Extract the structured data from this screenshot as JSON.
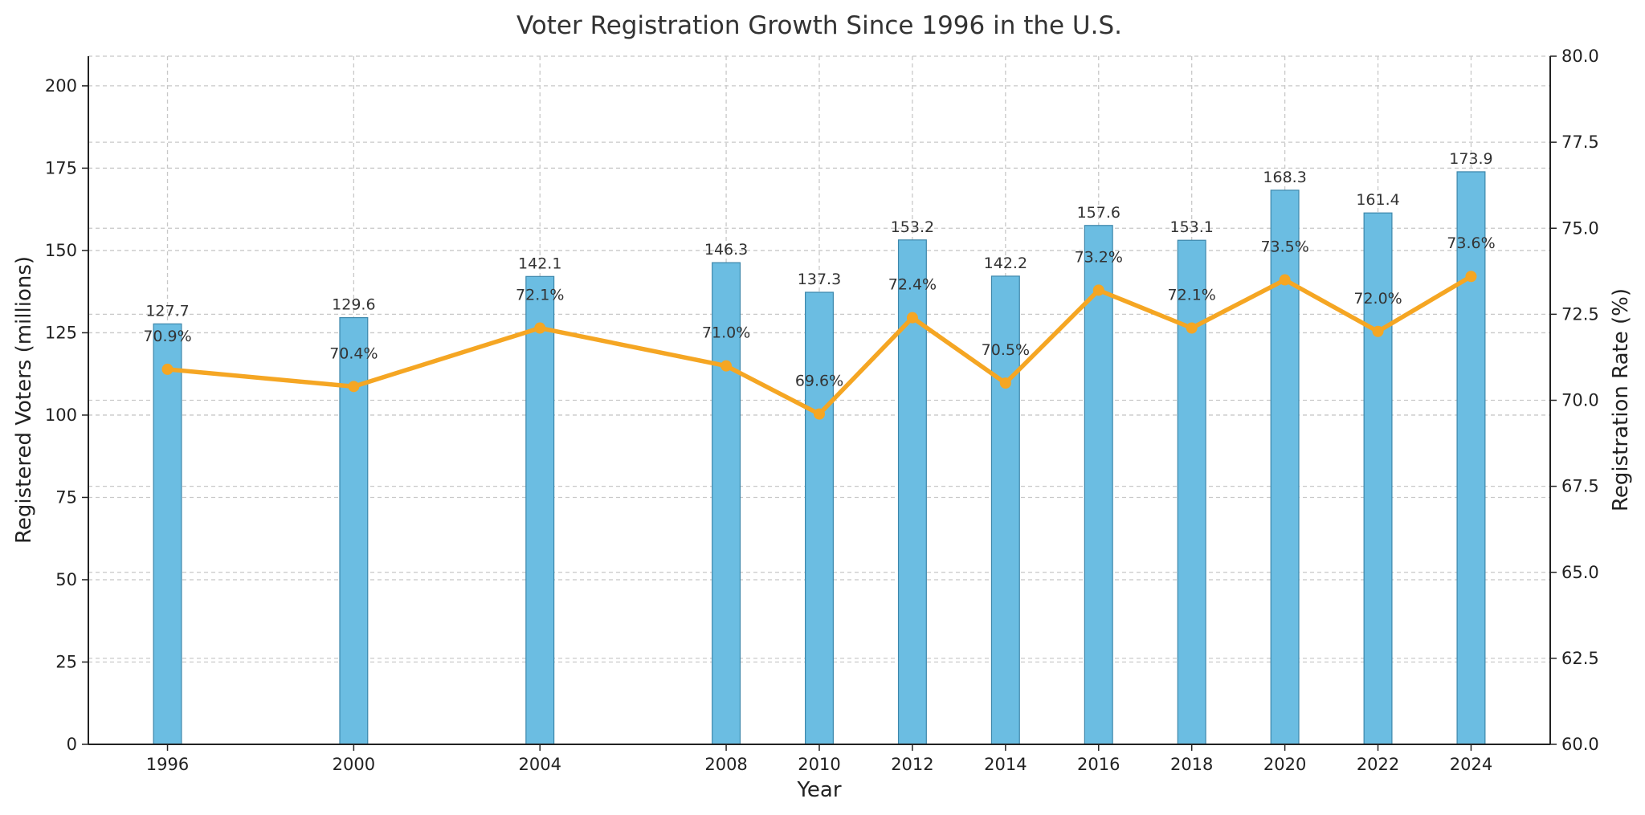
{
  "chart_data": {
    "type": "bar+line",
    "title": "Voter Registration Growth Since 1996 in the U.S.",
    "xlabel": "Year",
    "ylabel": "Registered Voters (millions)",
    "y2label": "Registration Rate (%)",
    "x": [
      1996,
      2000,
      2004,
      2008,
      2010,
      2012,
      2014,
      2016,
      2018,
      2020,
      2022,
      2024
    ],
    "xticks": [
      "1996",
      "2000",
      "2004",
      "2008",
      "2010",
      "2012",
      "2014",
      "2016",
      "2018",
      "2020",
      "2022",
      "2024"
    ],
    "xlim": [
      1994.3,
      2025.7
    ],
    "ylim": [
      0,
      209
    ],
    "y2lim": [
      60,
      80
    ],
    "yticks": [
      "0",
      "25",
      "50",
      "75",
      "100",
      "125",
      "150",
      "175",
      "200"
    ],
    "y2ticks": [
      "60.0",
      "62.5",
      "65.0",
      "67.5",
      "70.0",
      "72.5",
      "75.0",
      "77.5",
      "80.0"
    ],
    "grid": true,
    "series": [
      {
        "type": "bar",
        "axis": "left",
        "color": "#6bbde2",
        "edge_color": "#3d87ab",
        "values": [
          127.7,
          129.6,
          142.1,
          146.3,
          137.3,
          153.2,
          142.2,
          157.6,
          153.1,
          168.3,
          161.4,
          173.9
        ],
        "labels": [
          "127.7",
          "129.6",
          "142.1",
          "146.3",
          "137.3",
          "153.2",
          "142.2",
          "157.6",
          "153.1",
          "168.3",
          "161.4",
          "173.9"
        ]
      },
      {
        "type": "line",
        "axis": "right",
        "color": "#f5a623",
        "marker": "circle",
        "values": [
          70.9,
          70.4,
          72.1,
          71.0,
          69.6,
          72.4,
          70.5,
          73.2,
          72.1,
          73.5,
          72.0,
          73.6
        ],
        "labels": [
          "70.9%",
          "70.4%",
          "72.1%",
          "71.0%",
          "69.6%",
          "72.4%",
          "70.5%",
          "73.2%",
          "72.1%",
          "73.5%",
          "72.0%",
          "73.6%"
        ]
      }
    ]
  }
}
